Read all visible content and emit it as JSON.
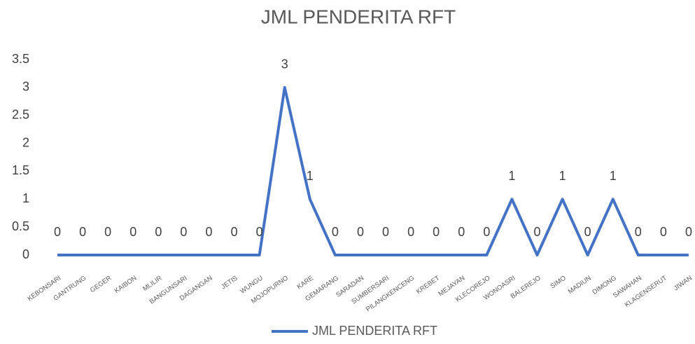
{
  "chart_data": {
    "type": "line",
    "title": "JML PENDERITA RFT",
    "categories": [
      "KEBONSARI",
      "GANTRUNG",
      "GEGER",
      "KAIBON",
      "MLILIR",
      "BANGUNSARI",
      "DAGANGAN",
      "JETIS",
      "WUNGU",
      "MOJOPURNO",
      "KARE",
      "GEMARANG",
      "SARADAN",
      "SUMBERSARI",
      "PILANGKENCENG",
      "KREBET",
      "MEJAYAN",
      "KLECOREJO",
      "WONOASRI",
      "BALEREJO",
      "SIMO",
      "MADIUN",
      "DIMONG",
      "SAWAHAN",
      "KLAGENSERUT",
      "JIWAN"
    ],
    "series": [
      {
        "name": "JML PENDERITA RFT",
        "color": "#4472c4",
        "values": [
          0,
          0,
          0,
          0,
          0,
          0,
          0,
          0,
          0,
          3,
          1,
          0,
          0,
          0,
          0,
          0,
          0,
          0,
          1,
          0,
          1,
          0,
          1,
          0,
          0,
          0
        ]
      }
    ],
    "ylim": [
      0,
      3.5
    ],
    "yticks": [
      0,
      0.5,
      1,
      1.5,
      2,
      2.5,
      3,
      3.5
    ],
    "grid": false,
    "legend": "bottom"
  }
}
